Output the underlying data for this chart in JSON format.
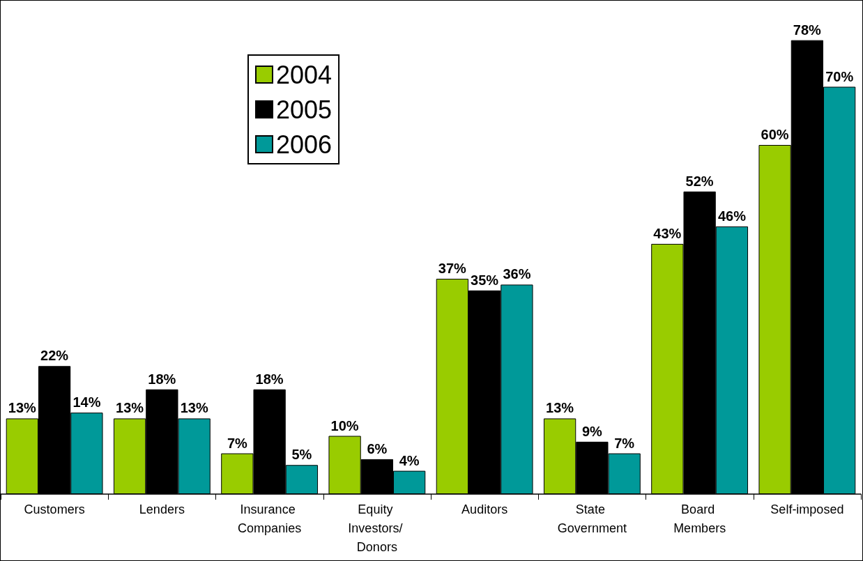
{
  "chart_data": {
    "type": "bar",
    "categories": [
      "Customers",
      "Lenders",
      "Insurance Companies",
      "Equity Investors/ Donors",
      "Auditors",
      "State Government",
      "Board Members",
      "Self-imposed"
    ],
    "series": [
      {
        "name": "2004",
        "color": "#99cc00",
        "values": [
          13,
          13,
          7,
          10,
          37,
          13,
          43,
          60
        ],
        "value_labels": [
          "13%",
          "13%",
          "7%",
          "10%",
          "37%",
          "13%",
          "43%",
          "60%"
        ]
      },
      {
        "name": "2005",
        "color": "#000000",
        "values": [
          22,
          18,
          18,
          6,
          35,
          9,
          52,
          78
        ],
        "value_labels": [
          "22%",
          "18%",
          "18%",
          "6%",
          "35%",
          "9%",
          "52%",
          "78%"
        ]
      },
      {
        "name": "2006",
        "color": "#009999",
        "values": [
          14,
          13,
          5,
          4,
          36,
          7,
          46,
          70
        ],
        "value_labels": [
          "14%",
          "13%",
          "5%",
          "4%",
          "36%",
          "7%",
          "46%",
          "70%"
        ]
      }
    ],
    "legend": "top left"
  }
}
